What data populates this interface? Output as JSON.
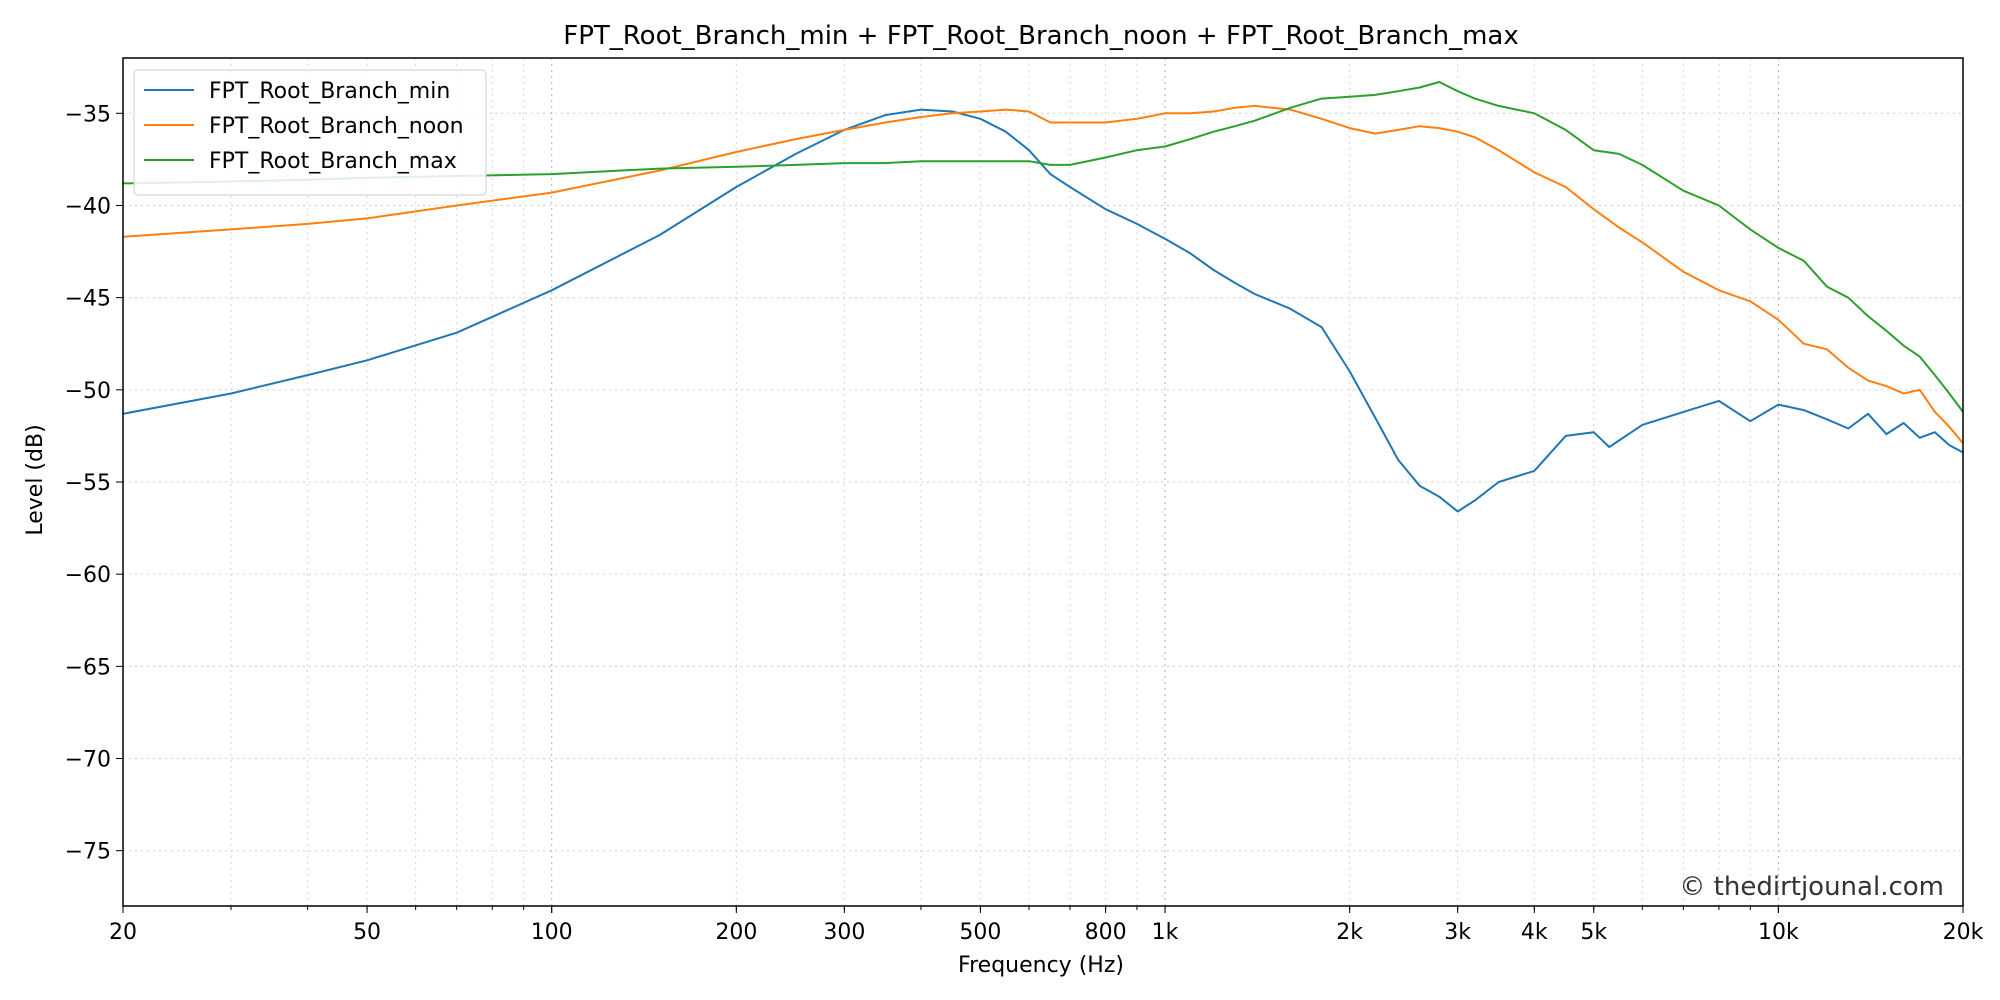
{
  "chart_data": {
    "type": "line",
    "title": "FPT_Root_Branch_min + FPT_Root_Branch_noon + FPT_Root_Branch_max",
    "xlabel": "Frequency (Hz)",
    "ylabel": "Level (dB)",
    "xscale": "log",
    "xlim": [
      20,
      20000
    ],
    "ylim": [
      -78,
      -32
    ],
    "grid": true,
    "legend_position": "top-left",
    "x_ticks": [
      {
        "value": 20,
        "label": "20"
      },
      {
        "value": 50,
        "label": "50"
      },
      {
        "value": 100,
        "label": "100"
      },
      {
        "value": 200,
        "label": "200"
      },
      {
        "value": 300,
        "label": "300"
      },
      {
        "value": 500,
        "label": "500"
      },
      {
        "value": 800,
        "label": "800"
      },
      {
        "value": 1000,
        "label": "1k"
      },
      {
        "value": 2000,
        "label": "2k"
      },
      {
        "value": 3000,
        "label": "3k"
      },
      {
        "value": 4000,
        "label": "4k"
      },
      {
        "value": 5000,
        "label": "5k"
      },
      {
        "value": 10000,
        "label": "10k"
      },
      {
        "value": 20000,
        "label": "20k"
      }
    ],
    "y_ticks": [
      {
        "value": -35,
        "label": "−35"
      },
      {
        "value": -40,
        "label": "−40"
      },
      {
        "value": -45,
        "label": "−45"
      },
      {
        "value": -50,
        "label": "−50"
      },
      {
        "value": -55,
        "label": "−55"
      },
      {
        "value": -60,
        "label": "−60"
      },
      {
        "value": -65,
        "label": "−65"
      },
      {
        "value": -70,
        "label": "−70"
      },
      {
        "value": -75,
        "label": "−75"
      }
    ],
    "series": [
      {
        "name": "FPT_Root_Branch_min",
        "color": "#1f77b4",
        "x": [
          20,
          30,
          40,
          50,
          70,
          100,
          150,
          200,
          250,
          300,
          350,
          400,
          450,
          500,
          550,
          600,
          650,
          700,
          800,
          900,
          1000,
          1100,
          1200,
          1300,
          1400,
          1600,
          1800,
          2000,
          2200,
          2400,
          2600,
          2800,
          3000,
          3200,
          3500,
          4000,
          4500,
          5000,
          5300,
          6000,
          7000,
          8000,
          9000,
          10000,
          11000,
          12000,
          13000,
          14000,
          15000,
          16000,
          17000,
          18000,
          19000,
          20000
        ],
        "y": [
          -51.3,
          -50.2,
          -49.2,
          -48.4,
          -46.9,
          -44.6,
          -41.6,
          -39.0,
          -37.2,
          -35.9,
          -35.1,
          -34.8,
          -34.9,
          -35.3,
          -36.0,
          -37.0,
          -38.3,
          -39.0,
          -40.2,
          -41.0,
          -41.8,
          -42.6,
          -43.5,
          -44.2,
          -44.8,
          -45.6,
          -46.6,
          -49.0,
          -51.5,
          -53.8,
          -55.2,
          -55.8,
          -56.6,
          -56.0,
          -55.0,
          -54.4,
          -52.5,
          -52.3,
          -53.1,
          -51.9,
          -51.2,
          -50.6,
          -51.7,
          -50.8,
          -51.1,
          -51.6,
          -52.1,
          -51.3,
          -52.4,
          -51.8,
          -52.6,
          -52.3,
          -53.0,
          -53.4
        ]
      },
      {
        "name": "FPT_Root_Branch_noon",
        "color": "#ff7f0e",
        "x": [
          20,
          30,
          40,
          50,
          70,
          100,
          150,
          200,
          250,
          300,
          350,
          400,
          450,
          500,
          550,
          600,
          650,
          700,
          800,
          900,
          1000,
          1100,
          1200,
          1300,
          1400,
          1600,
          1800,
          2000,
          2200,
          2400,
          2600,
          2800,
          3000,
          3200,
          3500,
          4000,
          4500,
          5000,
          5500,
          6000,
          7000,
          8000,
          9000,
          10000,
          11000,
          12000,
          13000,
          14000,
          15000,
          16000,
          17000,
          18000,
          19000,
          20000
        ],
        "y": [
          -41.7,
          -41.3,
          -41.0,
          -40.7,
          -40.0,
          -39.3,
          -38.1,
          -37.1,
          -36.4,
          -35.9,
          -35.5,
          -35.2,
          -35.0,
          -34.9,
          -34.8,
          -34.9,
          -35.5,
          -35.5,
          -35.5,
          -35.3,
          -35.0,
          -35.0,
          -34.9,
          -34.7,
          -34.6,
          -34.8,
          -35.3,
          -35.8,
          -36.1,
          -35.9,
          -35.7,
          -35.8,
          -36.0,
          -36.3,
          -37.0,
          -38.2,
          -39.0,
          -40.2,
          -41.2,
          -42.0,
          -43.6,
          -44.6,
          -45.2,
          -46.2,
          -47.5,
          -47.8,
          -48.8,
          -49.5,
          -49.8,
          -50.2,
          -50.0,
          -51.2,
          -52.0,
          -52.9
        ]
      },
      {
        "name": "FPT_Root_Branch_max",
        "color": "#2ca02c",
        "x": [
          20,
          30,
          40,
          50,
          70,
          100,
          150,
          200,
          250,
          300,
          350,
          400,
          450,
          500,
          550,
          600,
          650,
          700,
          800,
          900,
          1000,
          1100,
          1200,
          1300,
          1400,
          1600,
          1800,
          2000,
          2200,
          2400,
          2600,
          2800,
          3000,
          3200,
          3500,
          4000,
          4500,
          5000,
          5500,
          6000,
          7000,
          8000,
          9000,
          10000,
          11000,
          12000,
          13000,
          14000,
          15000,
          16000,
          17000,
          18000,
          19000,
          20000
        ],
        "y": [
          -38.8,
          -38.7,
          -38.6,
          -38.5,
          -38.4,
          -38.3,
          -38.0,
          -37.9,
          -37.8,
          -37.7,
          -37.7,
          -37.6,
          -37.6,
          -37.6,
          -37.6,
          -37.6,
          -37.8,
          -37.8,
          -37.4,
          -37.0,
          -36.8,
          -36.4,
          -36.0,
          -35.7,
          -35.4,
          -34.7,
          -34.2,
          -34.1,
          -34.0,
          -33.8,
          -33.6,
          -33.3,
          -33.8,
          -34.2,
          -34.6,
          -35.0,
          -35.9,
          -37.0,
          -37.2,
          -37.8,
          -39.2,
          -40.0,
          -41.3,
          -42.3,
          -43.0,
          -44.4,
          -45.0,
          -46.0,
          -46.8,
          -47.6,
          -48.2,
          -49.2,
          -50.2,
          -51.2
        ]
      }
    ],
    "watermark": "© thedirtjounal.com"
  }
}
